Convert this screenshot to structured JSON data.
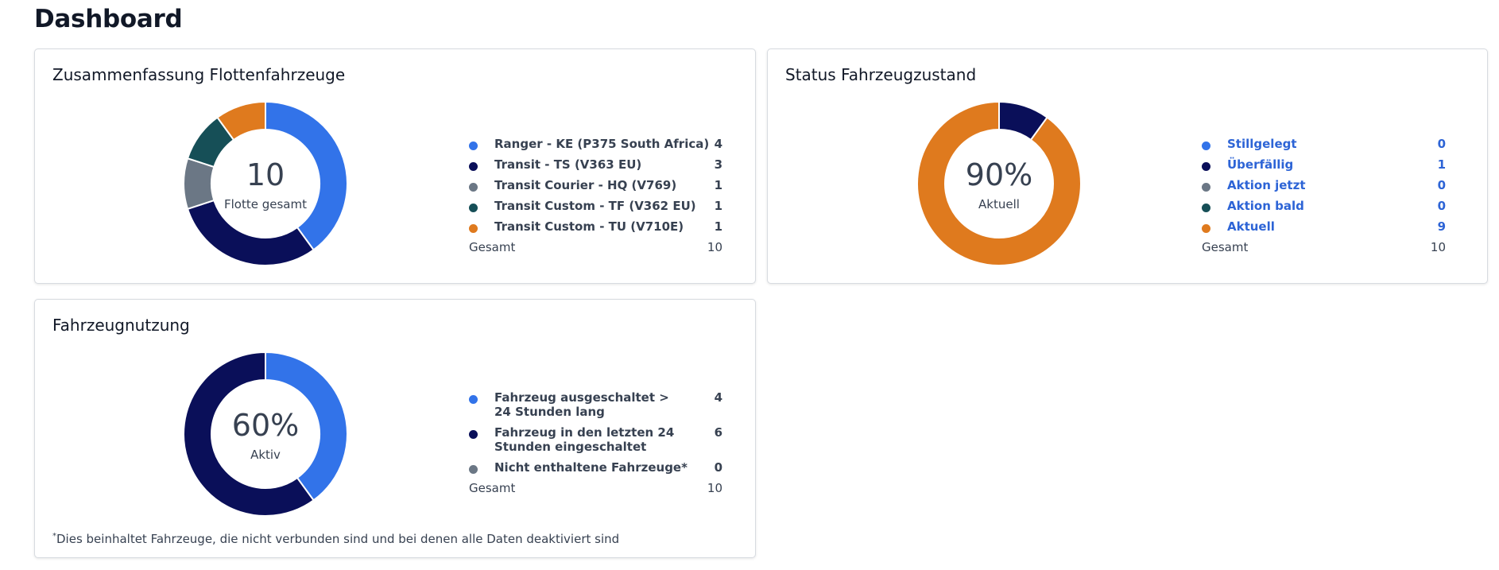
{
  "page": {
    "title": "Dashboard"
  },
  "fleet": {
    "title": "Zusammenfassung Flottenfahrzeuge",
    "center_value": "10",
    "center_label": "Flotte gesamt",
    "items": [
      {
        "label": "Ranger - KE (P375 South Africa)",
        "value": 4,
        "color": "#3273e9"
      },
      {
        "label": "Transit - TS (V363 EU)",
        "value": 3,
        "color": "#0a0f59"
      },
      {
        "label": "Transit Courier - HQ (V769)",
        "value": 1,
        "color": "#6b7785"
      },
      {
        "label": "Transit Custom - TF (V362 EU)",
        "value": 1,
        "color": "#164f57"
      },
      {
        "label": "Transit Custom - TU (V710E)",
        "value": 1,
        "color": "#df7a1e"
      }
    ],
    "total_label": "Gesamt",
    "total_value": "10"
  },
  "health": {
    "title": "Status Fahrzeugzustand",
    "center_value": "90%",
    "center_label": "Aktuell",
    "items": [
      {
        "label": "Stillgelegt",
        "value": 0,
        "color": "#3273e9"
      },
      {
        "label": "Überfällig",
        "value": 1,
        "color": "#0a0f59"
      },
      {
        "label": "Aktion jetzt",
        "value": 0,
        "color": "#6b7785"
      },
      {
        "label": "Aktion bald",
        "value": 0,
        "color": "#164f57"
      },
      {
        "label": "Aktuell",
        "value": 9,
        "color": "#df7a1e"
      }
    ],
    "total_label": "Gesamt",
    "total_value": "10"
  },
  "usage": {
    "title": "Fahrzeugnutzung",
    "center_value": "60%",
    "center_label": "Aktiv",
    "items": [
      {
        "label": "Fahrzeug ausgeschaltet > 24 Stunden lang",
        "value": 4,
        "color": "#3273e9"
      },
      {
        "label": "Fahrzeug in den letzten 24 Stunden eingeschaltet",
        "value": 6,
        "color": "#0a0f59"
      },
      {
        "label": "Nicht enthaltene Fahrzeuge*",
        "value": 0,
        "color": "#6b7785"
      }
    ],
    "total_label": "Gesamt",
    "total_value": "10",
    "footnote_mark": "*",
    "footnote": "Dies beinhaltet Fahrzeuge, die nicht verbunden sind und bei denen alle Daten deaktiviert sind"
  }
}
